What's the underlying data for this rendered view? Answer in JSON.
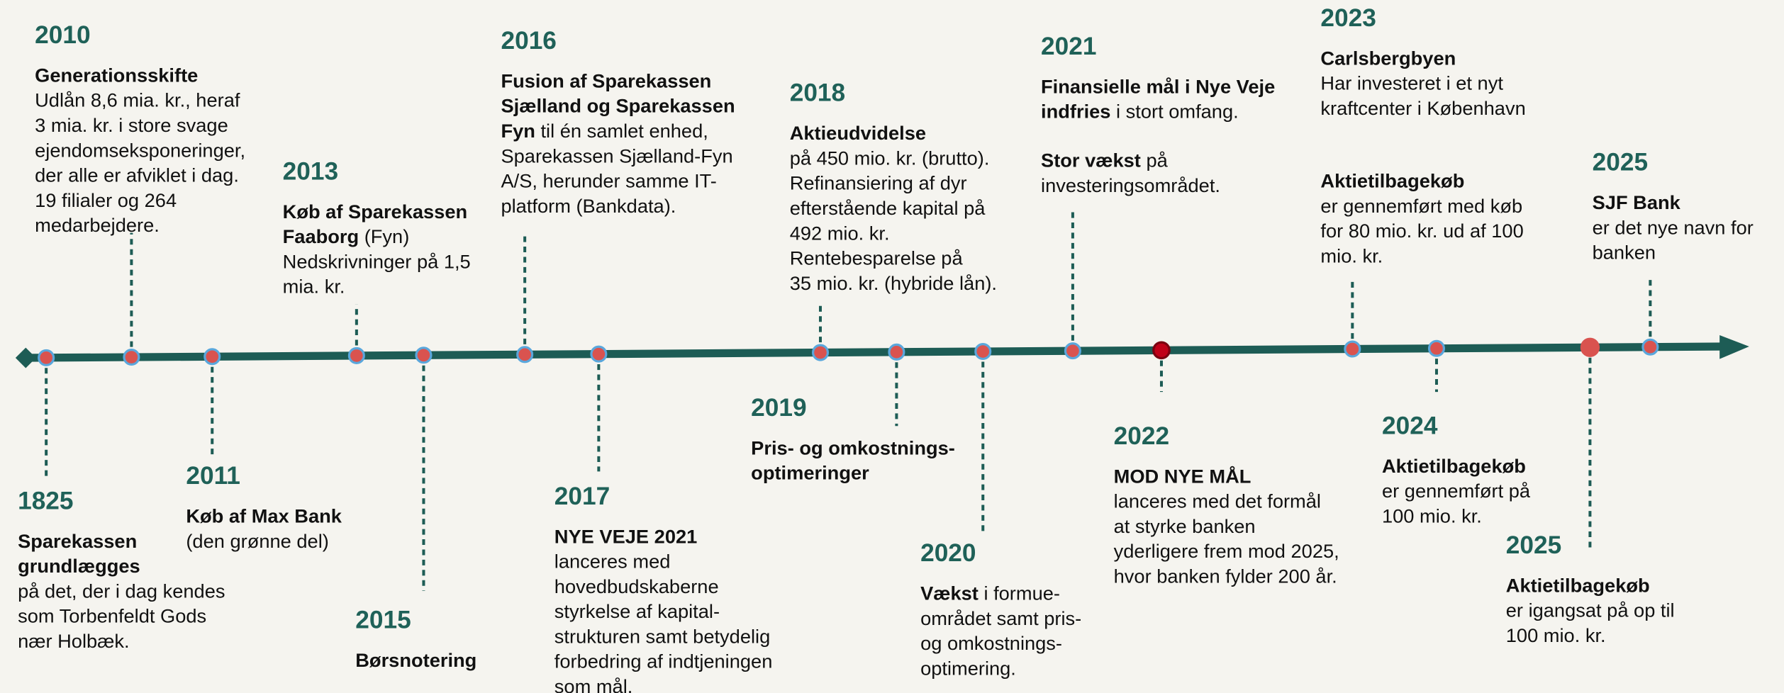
{
  "events": [
    {
      "year": "1825",
      "blocks": [
        [
          [
            {
              "text": "Sparekassen",
              "bold": true
            }
          ],
          [
            {
              "text": "grundlægges",
              "bold": true
            }
          ],
          [
            {
              "text": "på det, der i dag kendes",
              "bold": false
            }
          ],
          [
            {
              "text": "som Torbenfeldt Gods",
              "bold": false
            }
          ],
          [
            {
              "text": "nær Holbæk.",
              "bold": false
            }
          ]
        ]
      ]
    },
    {
      "year": "2010",
      "blocks": [
        [
          [
            {
              "text": "Generationsskifte",
              "bold": true
            }
          ],
          [
            {
              "text": "Udlån 8,6 mia. kr., heraf",
              "bold": false
            }
          ],
          [
            {
              "text": "3 mia. kr. i store svage",
              "bold": false
            }
          ],
          [
            {
              "text": "ejendomseksponeringer,",
              "bold": false
            }
          ],
          [
            {
              "text": "der alle er afviklet i dag.",
              "bold": false
            }
          ],
          [
            {
              "text": "19 filialer og 264",
              "bold": false
            }
          ],
          [
            {
              "text": "medarbejdere.",
              "bold": false
            }
          ]
        ]
      ]
    },
    {
      "year": "2011",
      "blocks": [
        [
          [
            {
              "text": "Køb af Max Bank",
              "bold": true
            }
          ],
          [
            {
              "text": "(den grønne del)",
              "bold": false
            }
          ]
        ]
      ]
    },
    {
      "year": "2013",
      "blocks": [
        [
          [
            {
              "text": "Køb af Sparekassen",
              "bold": true
            }
          ],
          [
            {
              "text": "Faaborg",
              "bold": true
            },
            {
              "text": " (Fyn)",
              "bold": false
            }
          ],
          [
            {
              "text": "Nedskrivninger på 1,5",
              "bold": false
            }
          ],
          [
            {
              "text": "mia. kr.",
              "bold": false
            }
          ]
        ]
      ]
    },
    {
      "year": "2015",
      "blocks": [
        [
          [
            {
              "text": "Børsnotering",
              "bold": true
            }
          ]
        ]
      ]
    },
    {
      "year": "2016",
      "blocks": [
        [
          [
            {
              "text": "Fusion af Sparekassen",
              "bold": true
            }
          ],
          [
            {
              "text": "Sjælland og Sparekassen",
              "bold": true
            }
          ],
          [
            {
              "text": "Fyn",
              "bold": true
            },
            {
              "text": " til én samlet enhed,",
              "bold": false
            }
          ],
          [
            {
              "text": "Sparekassen Sjælland-Fyn",
              "bold": false
            }
          ],
          [
            {
              "text": "A/S, herunder samme IT-",
              "bold": false
            }
          ],
          [
            {
              "text": "platform (Bankdata).",
              "bold": false
            }
          ]
        ]
      ]
    },
    {
      "year": "2017",
      "blocks": [
        [
          [
            {
              "text": "NYE VEJE 2021",
              "bold": true
            }
          ],
          [
            {
              "text": "lanceres med",
              "bold": false
            }
          ],
          [
            {
              "text": "hovedbudskaberne",
              "bold": false
            }
          ],
          [
            {
              "text": "styrkelse af kapital-",
              "bold": false
            }
          ],
          [
            {
              "text": "strukturen samt betydelig",
              "bold": false
            }
          ],
          [
            {
              "text": "forbedring af indtjeningen",
              "bold": false
            }
          ],
          [
            {
              "text": "som mål.",
              "bold": false
            }
          ]
        ]
      ]
    },
    {
      "year": "2018",
      "blocks": [
        [
          [
            {
              "text": "Aktieudvidelse",
              "bold": true
            }
          ],
          [
            {
              "text": "på 450 mio. kr. (brutto).",
              "bold": false
            }
          ],
          [
            {
              "text": "Refinansiering af dyr",
              "bold": false
            }
          ],
          [
            {
              "text": "efterstående kapital på",
              "bold": false
            }
          ],
          [
            {
              "text": "492 mio. kr.",
              "bold": false
            }
          ],
          [
            {
              "text": "Rentebesparelse på",
              "bold": false
            }
          ],
          [
            {
              "text": "35 mio. kr. (hybride lån).",
              "bold": false
            }
          ]
        ]
      ]
    },
    {
      "year": "2019",
      "blocks": [
        [
          [
            {
              "text": "Pris- og omkostnings-",
              "bold": true
            }
          ],
          [
            {
              "text": "optimeringer",
              "bold": true
            }
          ]
        ]
      ]
    },
    {
      "year": "2020",
      "blocks": [
        [
          [
            {
              "text": "Vækst",
              "bold": true
            },
            {
              "text": " i formue-",
              "bold": false
            }
          ],
          [
            {
              "text": "området samt pris-",
              "bold": false
            }
          ],
          [
            {
              "text": "og omkostnings-",
              "bold": false
            }
          ],
          [
            {
              "text": "optimering.",
              "bold": false
            }
          ]
        ]
      ]
    },
    {
      "year": "2021",
      "blocks": [
        [
          [
            {
              "text": "Finansielle mål i Nye Veje",
              "bold": true
            }
          ],
          [
            {
              "text": "indfries",
              "bold": true
            },
            {
              "text": " i stort omfang.",
              "bold": false
            }
          ]
        ],
        [
          [
            {
              "text": "Stor vækst",
              "bold": true
            },
            {
              "text": " på",
              "bold": false
            }
          ],
          [
            {
              "text": "investeringsområdet.",
              "bold": false
            }
          ]
        ]
      ]
    },
    {
      "year": "2022",
      "blocks": [
        [
          [
            {
              "text": "MOD NYE MÅL",
              "bold": true
            }
          ],
          [
            {
              "text": "lanceres med det formål",
              "bold": false
            }
          ],
          [
            {
              "text": "at styrke banken",
              "bold": false
            }
          ],
          [
            {
              "text": "yderligere frem mod 2025,",
              "bold": false
            }
          ],
          [
            {
              "text": "hvor banken fylder 200 år.",
              "bold": false
            }
          ]
        ]
      ]
    },
    {
      "year": "2023",
      "blocks": [
        [
          [
            {
              "text": "Carlsbergbyen",
              "bold": true
            }
          ],
          [
            {
              "text": "Har investeret i et nyt",
              "bold": false
            }
          ],
          [
            {
              "text": "kraftcenter i København",
              "bold": false
            }
          ]
        ],
        [
          [
            {
              "text": "Aktietilbagekøb",
              "bold": true
            }
          ],
          [
            {
              "text": "er gennemført med køb",
              "bold": false
            }
          ],
          [
            {
              "text": "for 80 mio. kr. ud af 100",
              "bold": false
            }
          ],
          [
            {
              "text": "mio. kr.",
              "bold": false
            }
          ]
        ]
      ]
    },
    {
      "year": "2024",
      "blocks": [
        [
          [
            {
              "text": "Aktietilbagekøb",
              "bold": true
            }
          ],
          [
            {
              "text": "er gennemført på",
              "bold": false
            }
          ],
          [
            {
              "text": "100 mio. kr.",
              "bold": false
            }
          ]
        ]
      ]
    },
    {
      "year": "2025",
      "blocks": [
        [
          [
            {
              "text": "Aktietilbagekøb",
              "bold": true
            }
          ],
          [
            {
              "text": "er igangsat på op til",
              "bold": false
            }
          ],
          [
            {
              "text": "100 mio. kr.",
              "bold": false
            }
          ]
        ]
      ]
    },
    {
      "year": "2025",
      "blocks": [
        [
          [
            {
              "text": "SJF Bank",
              "bold": true
            }
          ],
          [
            {
              "text": "er det nye navn for",
              "bold": false
            }
          ],
          [
            {
              "text": "banken",
              "bold": false
            }
          ]
        ]
      ]
    }
  ]
}
